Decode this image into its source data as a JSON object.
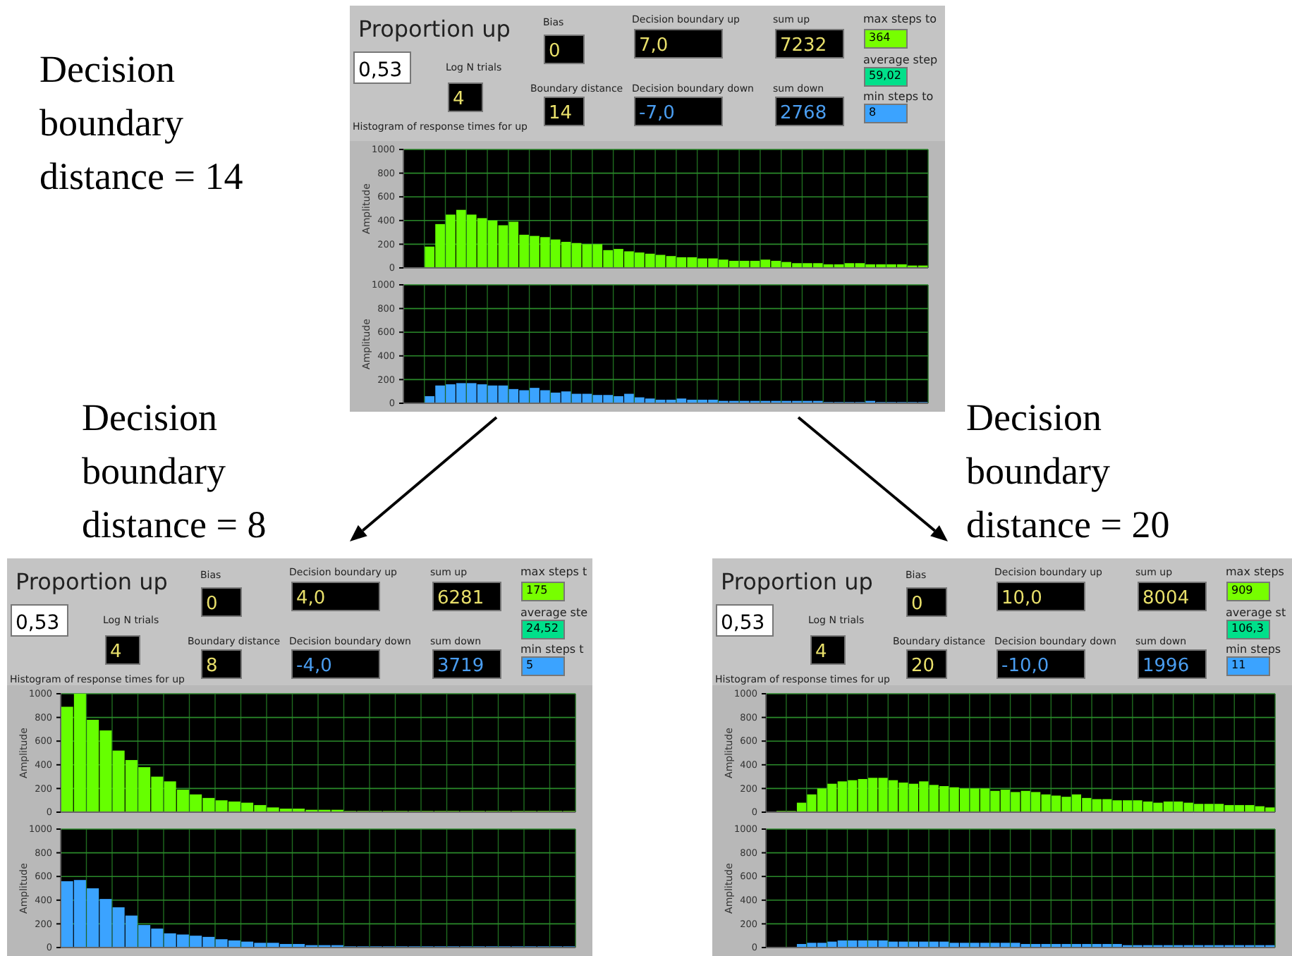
{
  "chart_data": [
    {
      "type": "other",
      "title": "Decision boundary distance = 14",
      "annotations": [
        "Proportion up",
        "0,53",
        "Log N trials",
        "4",
        "Bias",
        "0",
        "Boundary distance",
        "14",
        "Decision boundary up",
        "7,0",
        "Decision boundary down",
        "-7,0",
        "sum up",
        "7232",
        "sum down",
        "2768",
        "max steps to",
        "364",
        "average step",
        "59,02",
        "min steps to",
        "8",
        "Histogram of response times for up"
      ]
    },
    {
      "type": "bar",
      "ylabel": "Amplitude",
      "ylim": [
        0,
        1000
      ],
      "yticks": [
        0,
        200,
        400,
        600,
        800,
        1000
      ],
      "grid": true,
      "tick_labels": "y",
      "categories": [
        null,
        null,
        null,
        null,
        null,
        null,
        null,
        null,
        null,
        null,
        null,
        null,
        null,
        null,
        null,
        null,
        null,
        null,
        null,
        null,
        null,
        null,
        null,
        null,
        null,
        null,
        null,
        null,
        null,
        null,
        null,
        null,
        null,
        null,
        null,
        null,
        null,
        null,
        null,
        null,
        null,
        null,
        null,
        null,
        null,
        null,
        null,
        null,
        null,
        null
      ],
      "color": "#66ff00",
      "values": [
        0,
        0,
        180,
        370,
        450,
        490,
        450,
        420,
        400,
        360,
        390,
        280,
        270,
        260,
        240,
        220,
        210,
        200,
        200,
        150,
        160,
        140,
        130,
        120,
        110,
        100,
        90,
        90,
        80,
        80,
        70,
        60,
        60,
        60,
        70,
        60,
        50,
        40,
        40,
        40,
        30,
        30,
        40,
        40,
        30,
        30,
        30,
        30,
        20,
        20
      ]
    },
    {
      "type": "bar",
      "ylabel": "Amplitude",
      "ylim": [
        0,
        1000
      ],
      "yticks": [
        0,
        200,
        400,
        600,
        800,
        1000
      ],
      "grid": true,
      "tick_labels": "y",
      "categories": [
        null,
        null,
        null,
        null,
        null,
        null,
        null,
        null,
        null,
        null,
        null,
        null,
        null,
        null,
        null,
        null,
        null,
        null,
        null,
        null,
        null,
        null,
        null,
        null,
        null,
        null,
        null,
        null,
        null,
        null,
        null,
        null,
        null,
        null,
        null,
        null,
        null,
        null,
        null,
        null,
        null,
        null,
        null,
        null,
        null,
        null,
        null,
        null,
        null,
        null
      ],
      "color": "#3ba3ff",
      "values": [
        0,
        0,
        60,
        150,
        160,
        170,
        170,
        160,
        150,
        150,
        120,
        110,
        130,
        110,
        90,
        100,
        80,
        80,
        70,
        70,
        60,
        80,
        50,
        40,
        30,
        30,
        40,
        30,
        30,
        30,
        20,
        20,
        20,
        20,
        20,
        20,
        20,
        20,
        20,
        20,
        10,
        10,
        10,
        10,
        20,
        10,
        10,
        10,
        10,
        10
      ]
    },
    {
      "type": "other",
      "title": "Decision boundary distance = 8",
      "annotations": [
        "Proportion up",
        "0,53",
        "Log N trials",
        "4",
        "Bias",
        "0",
        "Boundary distance",
        "8",
        "Decision boundary up",
        "4,0",
        "Decision boundary down",
        "-4,0",
        "sum up",
        "6281",
        "sum down",
        "3719",
        "max steps t",
        "175",
        "average ste",
        "24,52",
        "min steps t",
        "5",
        "Histogram of response times for up"
      ]
    },
    {
      "type": "bar",
      "ylabel": "Amplitude",
      "ylim": [
        0,
        1000
      ],
      "yticks": [
        0,
        200,
        400,
        600,
        800,
        1000
      ],
      "grid": true,
      "tick_labels": "y",
      "categories": [
        null,
        null,
        null,
        null,
        null,
        null,
        null,
        null,
        null,
        null,
        null,
        null,
        null,
        null,
        null,
        null,
        null,
        null,
        null,
        null,
        null,
        null,
        null,
        null,
        null,
        null,
        null,
        null,
        null,
        null,
        null,
        null,
        null,
        null,
        null,
        null,
        null,
        null,
        null,
        null
      ],
      "color": "#66ff00",
      "values": [
        890,
        1000,
        780,
        690,
        520,
        440,
        380,
        300,
        260,
        190,
        150,
        120,
        100,
        90,
        80,
        60,
        40,
        30,
        30,
        20,
        20,
        20,
        10,
        10,
        10,
        10,
        10,
        10,
        10,
        10,
        10,
        10,
        10,
        10,
        10,
        10,
        10,
        10,
        10,
        10
      ]
    },
    {
      "type": "bar",
      "ylabel": "Amplitude",
      "ylim": [
        0,
        1000
      ],
      "yticks": [
        0,
        200,
        400,
        600,
        800,
        1000
      ],
      "grid": true,
      "tick_labels": "y",
      "categories": [
        null,
        null,
        null,
        null,
        null,
        null,
        null,
        null,
        null,
        null,
        null,
        null,
        null,
        null,
        null,
        null,
        null,
        null,
        null,
        null,
        null,
        null,
        null,
        null,
        null,
        null,
        null,
        null,
        null,
        null,
        null,
        null,
        null,
        null,
        null,
        null,
        null,
        null,
        null,
        null
      ],
      "color": "#3ba3ff",
      "values": [
        560,
        570,
        500,
        410,
        340,
        270,
        190,
        160,
        120,
        110,
        100,
        90,
        70,
        60,
        50,
        40,
        40,
        30,
        30,
        20,
        20,
        20,
        10,
        10,
        10,
        10,
        10,
        10,
        10,
        10,
        10,
        10,
        10,
        10,
        10,
        10,
        10,
        10,
        10,
        10
      ]
    },
    {
      "type": "other",
      "title": "Decision boundary distance = 20",
      "annotations": [
        "Proportion up",
        "0,53",
        "Log N trials",
        "4",
        "Bias",
        "0",
        "Boundary distance",
        "20",
        "Decision boundary up",
        "10,0",
        "Decision boundary down",
        "-10,0",
        "sum up",
        "8004",
        "sum down",
        "1996",
        "max steps",
        "909",
        "average st",
        "106,3",
        "min steps",
        "11",
        "Histogram of response times for up"
      ]
    },
    {
      "type": "bar",
      "ylabel": "Amplitude",
      "ylim": [
        0,
        1000
      ],
      "yticks": [
        0,
        200,
        400,
        600,
        800,
        1000
      ],
      "grid": true,
      "tick_labels": "y",
      "categories": [
        null,
        null,
        null,
        null,
        null,
        null,
        null,
        null,
        null,
        null,
        null,
        null,
        null,
        null,
        null,
        null,
        null,
        null,
        null,
        null,
        null,
        null,
        null,
        null,
        null,
        null,
        null,
        null,
        null,
        null,
        null,
        null,
        null,
        null,
        null,
        null,
        null,
        null,
        null,
        null,
        null,
        null,
        null,
        null,
        null,
        null,
        null,
        null,
        null,
        null
      ],
      "color": "#66ff00",
      "values": [
        0,
        10,
        10,
        80,
        150,
        200,
        240,
        260,
        270,
        280,
        290,
        290,
        270,
        250,
        240,
        260,
        230,
        220,
        210,
        200,
        200,
        200,
        180,
        190,
        170,
        180,
        170,
        150,
        140,
        130,
        150,
        120,
        110,
        110,
        100,
        100,
        100,
        90,
        80,
        90,
        90,
        80,
        70,
        70,
        70,
        60,
        60,
        60,
        50,
        40
      ]
    },
    {
      "type": "bar",
      "ylabel": "Amplitude",
      "ylim": [
        0,
        1000
      ],
      "yticks": [
        0,
        200,
        400,
        600,
        800,
        1000
      ],
      "grid": true,
      "tick_labels": "y",
      "categories": [
        null,
        null,
        null,
        null,
        null,
        null,
        null,
        null,
        null,
        null,
        null,
        null,
        null,
        null,
        null,
        null,
        null,
        null,
        null,
        null,
        null,
        null,
        null,
        null,
        null,
        null,
        null,
        null,
        null,
        null,
        null,
        null,
        null,
        null,
        null,
        null,
        null,
        null,
        null,
        null,
        null,
        null,
        null,
        null,
        null,
        null,
        null,
        null,
        null,
        null
      ],
      "color": "#3ba3ff",
      "values": [
        0,
        0,
        0,
        30,
        40,
        40,
        50,
        60,
        60,
        60,
        60,
        60,
        50,
        50,
        50,
        50,
        50,
        50,
        40,
        40,
        40,
        40,
        40,
        40,
        40,
        30,
        30,
        30,
        30,
        30,
        30,
        30,
        30,
        30,
        30,
        20,
        20,
        20,
        20,
        20,
        20,
        20,
        20,
        20,
        20,
        20,
        20,
        20,
        20,
        20
      ]
    }
  ]
}
